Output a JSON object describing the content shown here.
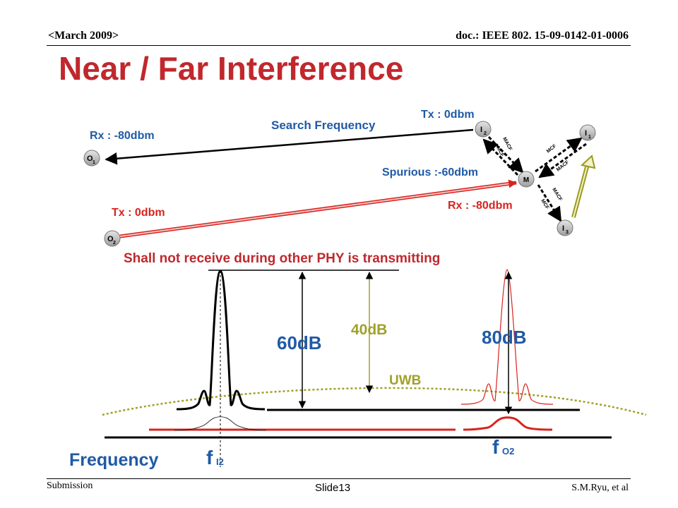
{
  "header": {
    "date": "<March 2009>",
    "doc_id": "doc.: IEEE 802. 15-09-0142-01-0006"
  },
  "title": "Near / Far Interference",
  "nodes": {
    "o1": {
      "letter": "O",
      "sub": "1"
    },
    "o2": {
      "letter": "O",
      "sub": "2"
    },
    "i1": {
      "letter": "I",
      "sub": "1"
    },
    "i2": {
      "letter": "I",
      "sub": "2"
    },
    "i3": {
      "letter": "I",
      "sub": "3"
    },
    "m": "M"
  },
  "labels": {
    "tx_top": "Tx : 0dbm",
    "search_frequency": "Search Frequency",
    "rx_o1": "Rx : -80dbm",
    "spurious": "Spurious :-60dbm",
    "rx_m": "Rx : -80dbm",
    "tx_o2": "Tx : 0dbm",
    "macf": "MACF",
    "mcf": "MCF",
    "statement": "Shall not receive during other PHY is transmitting"
  },
  "spectrum": {
    "db60": "60dB",
    "db40": "40dB",
    "db80": "80dB",
    "uwb": "UWB",
    "frequency_axis": "Frequency",
    "f_i2": {
      "letter": "f",
      "sub": "I2"
    },
    "f_o2": {
      "letter": "f",
      "sub": "O2"
    }
  },
  "colors": {
    "title_red": "#c0282d",
    "signal_red": "#d9231e",
    "olive": "#a0a028",
    "blue": "#1f5aa6",
    "node_gray": "#b4b4b4"
  },
  "footer": {
    "submission": "Submission",
    "slide": "Slide13",
    "author": "S.M.Ryu, et al"
  }
}
